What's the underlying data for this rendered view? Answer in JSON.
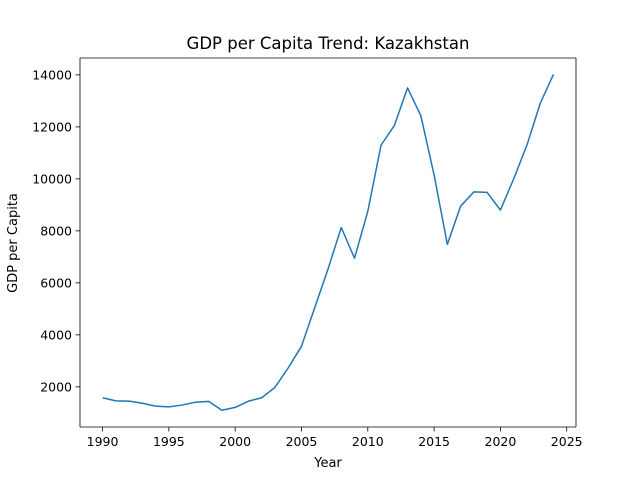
{
  "chart_data": {
    "type": "line",
    "title": "GDP per Capita Trend: Kazakhstan",
    "xlabel": "Year",
    "ylabel": "GDP per Capita",
    "xlim": [
      1988.3,
      2025.7
    ],
    "ylim": [
      456,
      14650
    ],
    "xticks": [
      1990,
      1995,
      2000,
      2005,
      2010,
      2015,
      2020,
      2025
    ],
    "yticks": [
      2000,
      4000,
      6000,
      8000,
      10000,
      12000,
      14000
    ],
    "grid": false,
    "line_color": "#1f77b4",
    "series": [
      {
        "x": [
          1990,
          1991,
          1992,
          1993,
          1994,
          1995,
          1996,
          1997,
          1998,
          1999,
          2000,
          2001,
          2002,
          2003,
          2004,
          2005,
          2006,
          2007,
          2008,
          2009,
          2010,
          2011,
          2012,
          2013,
          2014,
          2015,
          2016,
          2017,
          2018,
          2019,
          2020,
          2021,
          2022,
          2023,
          2024
        ],
        "values": [
          1580,
          1460,
          1450,
          1370,
          1260,
          1230,
          1300,
          1410,
          1440,
          1100,
          1210,
          1450,
          1580,
          1980,
          2730,
          3560,
          5050,
          6530,
          8130,
          6950,
          8750,
          11300,
          12050,
          13500,
          12430,
          10150,
          7480,
          8950,
          9500,
          9480,
          8800,
          10000,
          11300,
          12900,
          14020
        ]
      }
    ]
  }
}
